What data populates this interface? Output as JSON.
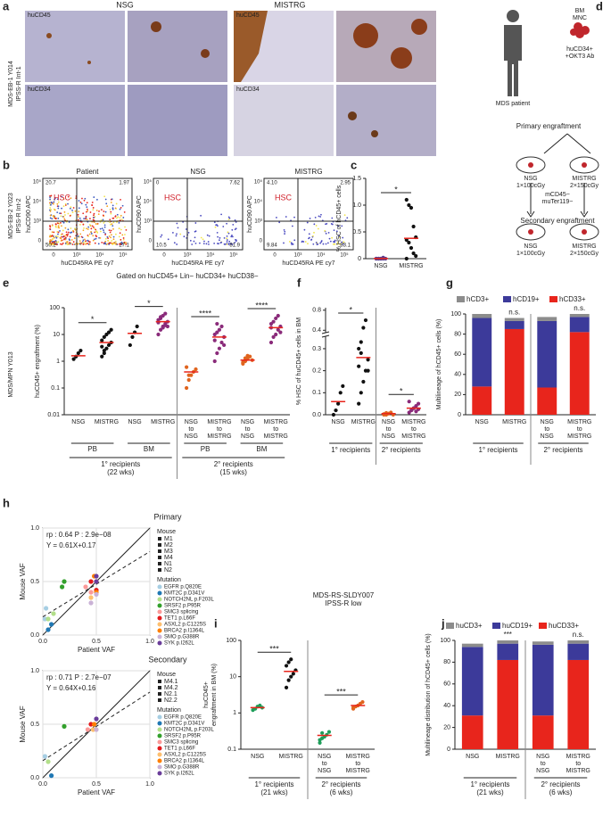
{
  "panel_a": {
    "label": "a",
    "columns": [
      "NSG",
      "MISTRG"
    ],
    "markers": [
      "huCD45",
      "huCD34"
    ],
    "side": [
      "MDS-EB-1 Y014",
      "IPSS-R Int-1"
    ]
  },
  "panel_b": {
    "label": "b",
    "plots": [
      {
        "title": "Patient",
        "quadrants": [
          "20.7",
          "1.97",
          "50.2",
          "27.1"
        ]
      },
      {
        "title": "NSG",
        "quadrants": [
          "0",
          "7.62",
          "10.5",
          "81.9"
        ]
      },
      {
        "title": "MISTRG",
        "quadrants": [
          "4.10",
          "2.95",
          "9.84",
          "83.1"
        ]
      }
    ],
    "gate_label": "HSC",
    "y_label": "huCD90 APC",
    "x_label": "huCD45RA PE cy7",
    "ticks": [
      "0",
      "10³",
      "10⁴",
      "10⁵"
    ],
    "footer": "Gated on huCD45+ Lin− huCD34+ huCD38−",
    "side": [
      "MDS-EB-2 Y023",
      "IPSS-R Int-2"
    ]
  },
  "panel_d": {
    "label": "d",
    "patient": "MDS patient",
    "sample": [
      "BM",
      "MNC"
    ],
    "antibody": [
      "huCD34+",
      "+OKT3 Ab"
    ],
    "primary": "Primary engraftment",
    "secondary": "Secondary engraftment",
    "mice": [
      {
        "name": "NSG",
        "dose": "1×100cGy"
      },
      {
        "name": "MISTRG",
        "dose": "2×150cGy"
      }
    ],
    "transfer": [
      "mCD45−",
      "muTer119−"
    ]
  },
  "side_e": "MDS/MPN Y013",
  "chart_data": [
    {
      "type": "dot",
      "panel": "c",
      "ylabel": "% HSC of hCD45+ cells",
      "categories": [
        [
          "NSG"
        ],
        [
          "MISTRG"
        ]
      ],
      "colors": [
        "#5a3a8c",
        "#111111"
      ],
      "points": [
        [
          0,
          0,
          0,
          0,
          0,
          0,
          0,
          0,
          0.02
        ],
        [
          1.1,
          1.0,
          0.95,
          0.6,
          0.4,
          0.35,
          0.3,
          0.2,
          0.1,
          0.05,
          0
        ]
      ],
      "means": [
        0.003,
        0.38
      ],
      "ylim": [
        0,
        1.5
      ],
      "yticks": [
        0,
        0.5,
        {
          "value": 1,
          "label": "1.0"
        },
        1.5
      ],
      "annotations": [
        "*"
      ]
    },
    {
      "type": "dot",
      "panel": "e",
      "ylabel": "huCD45+ engraftment (%)",
      "log": true,
      "categories": [
        [
          "NSG"
        ],
        [
          "MISTRG"
        ],
        [
          "NSG"
        ],
        [
          "MISTRG"
        ],
        [
          "NSG",
          "to",
          "NSG"
        ],
        [
          "MISTRG",
          "to",
          "MISTRG"
        ],
        [
          "NSG",
          "to",
          "NSG"
        ],
        [
          "MISTRG",
          "to",
          "MISTRG"
        ]
      ],
      "colors": [
        "#111111",
        "#111111",
        "#111111",
        "#8a2b7a",
        "#e0641e",
        "#8a2b7a",
        "#e0641e",
        "#8a2b7a"
      ],
      "points": [
        [
          1.2,
          1.5,
          2,
          2.5
        ],
        [
          1.5,
          2,
          3,
          4,
          5,
          6,
          8,
          10,
          12,
          15,
          3.5,
          2.5
        ],
        [
          4,
          8,
          12,
          20
        ],
        [
          10,
          15,
          20,
          25,
          30,
          35,
          40,
          50,
          60,
          20,
          28,
          45,
          18,
          22
        ],
        [
          0.1,
          0.2,
          0.3,
          0.4,
          0.5,
          0.6,
          0.3
        ],
        [
          1,
          2,
          3,
          5,
          8,
          10,
          12,
          15,
          20,
          4,
          6,
          25
        ],
        [
          0.8,
          1,
          1.2,
          1.5,
          1.1,
          0.9,
          1.3,
          1.6
        ],
        [
          5,
          8,
          10,
          15,
          20,
          25,
          30,
          40,
          50,
          12,
          18
        ]
      ],
      "means": [
        1.6,
        5,
        11,
        30,
        0.4,
        8,
        1.1,
        18
      ],
      "ylim": [
        0.01,
        100
      ],
      "yticks": [
        0.01,
        0.1,
        1,
        10,
        100
      ],
      "subgroups": [
        "PB",
        "BM",
        "PB",
        "BM"
      ],
      "group_labels": [
        [
          "1° recipients",
          "(22 wks)"
        ],
        [
          "2° recipients",
          "(15 wks)"
        ]
      ],
      "annotations": [
        "*",
        "*",
        "****",
        "****"
      ]
    },
    {
      "type": "dot",
      "panel": "f",
      "ylabel": "% HSC of huCD45+ cells in BM",
      "axis_break": [
        0.35,
        0.38
      ],
      "categories": [
        [
          "NSG"
        ],
        [
          "MISTRG"
        ],
        [
          "NSG",
          "to",
          "NSG"
        ],
        [
          "MISTRG",
          "to",
          "MISTRG"
        ]
      ],
      "colors": [
        "#111111",
        "#111111",
        "#e0641e",
        "#8a2b7a"
      ],
      "points": [
        [
          0,
          0.02,
          0.05,
          0.1,
          0.13
        ],
        [
          0.05,
          0.1,
          0.15,
          0.2,
          0.25,
          0.3,
          0.33,
          0.45,
          0.6,
          0.2,
          0.22,
          0.28
        ],
        [
          0,
          0,
          0.005,
          0.01,
          0,
          0.003,
          0.008
        ],
        [
          0.01,
          0.02,
          0.03,
          0.04,
          0.05,
          0.06,
          0.02,
          0.03,
          0.015,
          0.025
        ]
      ],
      "means": [
        0.06,
        0.26,
        0.005,
        0.03
      ],
      "ylim": [
        0,
        0.85
      ],
      "yticks": [
        {
          "value": 0,
          "label": "0.0"
        },
        0.1,
        0.2,
        0.3,
        0.4,
        0.8
      ],
      "group_labels": [
        [
          "1° recipients"
        ],
        [
          "2° recipients"
        ]
      ],
      "annotations": [
        "*",
        "*"
      ]
    },
    {
      "type": "stacked",
      "panel": "g",
      "ylabel": "Multilineage of hCD45+ cells (%)",
      "categories": [
        [
          "NSG"
        ],
        [
          "MISTRG"
        ],
        [
          "NSG",
          "to",
          "NSG"
        ],
        [
          "MISTRG",
          "to",
          "MISTRG"
        ]
      ],
      "series": [
        {
          "name": "hCD33+",
          "color": "#e8251c",
          "values": [
            28,
            85,
            27,
            82
          ]
        },
        {
          "name": "hCD19+",
          "color": "#3c3a9a",
          "values": [
            68,
            8,
            66,
            15
          ]
        },
        {
          "name": "hCD3+",
          "color": "#8c8c8c",
          "values": [
            4,
            3,
            4,
            3
          ]
        }
      ],
      "ylim": [
        0,
        100
      ],
      "yticks": [
        0,
        20,
        40,
        60,
        80,
        100
      ],
      "group_labels": [
        [
          "1° recipients"
        ],
        [
          "2° recipients"
        ]
      ],
      "annotations": [
        "n.s.",
        "n.s."
      ]
    },
    {
      "type": "scatter",
      "panel": "h",
      "title": "Primary",
      "xlabel": "Patient VAF",
      "ylabel": "Mouse VAF",
      "stats": [
        "rp : 0.64  P : 2.9e−08",
        "Y = 0.61X+0.17"
      ],
      "fit": {
        "slope": 0.61,
        "intercept": 0.17
      },
      "mouse_title": "Mouse",
      "mice": [
        "M1",
        "M2",
        "M3",
        "M4",
        "N1",
        "N2"
      ],
      "mutation_title": "Mutation",
      "xlim": [
        0,
        1
      ],
      "ylim": [
        0,
        1
      ],
      "xticks": [
        {
          "value": 0,
          "label": "0.0"
        },
        0.5,
        {
          "value": 1,
          "label": "1.0"
        }
      ],
      "yticks": [
        {
          "value": 0,
          "label": "0.0"
        },
        0.5,
        {
          "value": 1,
          "label": "1.0"
        }
      ],
      "grid": true,
      "series": [
        {
          "name": "EGFR p.Q820E",
          "color": "#a6cee3",
          "x": [
            0.02,
            0.03
          ],
          "values": [
            0.15,
            0.25
          ]
        },
        {
          "name": "KMT2C p.D341V",
          "color": "#1f78b4",
          "x": [
            0.05,
            0.08
          ],
          "values": [
            0.05,
            0.1
          ]
        },
        {
          "name": "NOTCH2NL p.F203L",
          "color": "#b2df8a",
          "x": [
            0.05,
            0.1
          ],
          "values": [
            0.15,
            0.2
          ]
        },
        {
          "name": "SRSF2 p.P95R",
          "color": "#33a02c",
          "x": [
            0.2,
            0.18
          ],
          "values": [
            0.5,
            0.45
          ]
        },
        {
          "name": "SMC3 splicing",
          "color": "#fb9a99",
          "x": [
            0.4,
            0.45
          ],
          "values": [
            0.45,
            0.4
          ]
        },
        {
          "name": "TET1 p.L66F",
          "color": "#e31a1c",
          "x": [
            0.45,
            0.5
          ],
          "values": [
            0.5,
            0.42
          ]
        },
        {
          "name": "ASXL2 p.C1225S",
          "color": "#fdbf6f",
          "x": [
            0.45,
            0.5
          ],
          "values": [
            0.35,
            0.5
          ]
        },
        {
          "name": "BRCA2 p.I1364L",
          "color": "#ff7f00",
          "x": [
            0.5,
            0.48
          ],
          "values": [
            0.4,
            0.55
          ]
        },
        {
          "name": "SMO p.G388R",
          "color": "#cab2d6",
          "x": [
            0.45,
            0.5
          ],
          "values": [
            0.3,
            0.38
          ]
        },
        {
          "name": "SYK p.I262L",
          "color": "#6a3d9a",
          "x": [
            0.5,
            0.5
          ],
          "values": [
            0.55,
            0.5
          ]
        }
      ]
    },
    {
      "type": "scatter",
      "title": "Secondary",
      "xlabel": "Patient VAF",
      "ylabel": "Mouse VAF",
      "stats": [
        "rp : 0.71  P : 2.7e−07",
        "Y = 0.64X+0.16"
      ],
      "fit": {
        "slope": 0.64,
        "intercept": 0.16
      },
      "mouse_title": "Mouse",
      "mice": [
        "M4.1",
        "M4.2",
        "N2.1",
        "N2.2"
      ],
      "mutation_title": "Mutation",
      "xlim": [
        0,
        1
      ],
      "ylim": [
        0,
        1
      ],
      "xticks": [
        {
          "value": 0,
          "label": "0.0"
        },
        0.5,
        {
          "value": 1,
          "label": "1.0"
        }
      ],
      "yticks": [
        {
          "value": 0,
          "label": "0.0"
        },
        0.5,
        {
          "value": 1,
          "label": "1.0"
        }
      ],
      "grid": true,
      "series": [
        {
          "name": "EGFR p.Q820E",
          "color": "#a6cee3",
          "x": [
            0.02
          ],
          "values": [
            0.2
          ]
        },
        {
          "name": "KMT2C p.D341V",
          "color": "#1f78b4",
          "x": [
            0.08
          ],
          "values": [
            0.02
          ]
        },
        {
          "name": "NOTCH2NL p.F203L",
          "color": "#b2df8a",
          "x": [
            0.05
          ],
          "values": [
            0.15
          ]
        },
        {
          "name": "SRSF2 p.P95R",
          "color": "#33a02c",
          "x": [
            0.2
          ],
          "values": [
            0.48
          ]
        },
        {
          "name": "SMC3 splicing",
          "color": "#fb9a99",
          "x": [
            0.42
          ],
          "values": [
            0.45
          ]
        },
        {
          "name": "TET1 p.L66F",
          "color": "#e31a1c",
          "x": [
            0.45
          ],
          "values": [
            0.5
          ]
        },
        {
          "name": "ASXL2 p.C1225S",
          "color": "#fdbf6f",
          "x": [
            0.47
          ],
          "values": [
            0.45
          ]
        },
        {
          "name": "BRCA2 p.I1364L",
          "color": "#ff7f00",
          "x": [
            0.48
          ],
          "values": [
            0.5
          ]
        },
        {
          "name": "SMO p.G388R",
          "color": "#cab2d6",
          "x": [
            0.5
          ],
          "values": [
            0.45
          ]
        },
        {
          "name": "SYK p.I262L",
          "color": "#6a3d9a",
          "x": [
            0.5
          ],
          "values": [
            0.55
          ]
        }
      ]
    },
    {
      "type": "dot",
      "panel": "i",
      "title": "MDS-RS-SLDY007",
      "subtitle": "IPSS-R low",
      "ylabel": [
        "huCD45+",
        "engraftment in BM (%)"
      ],
      "log": true,
      "categories": [
        [
          "NSG"
        ],
        [
          "MISTRG"
        ],
        [
          "NSG",
          "to",
          "NSG"
        ],
        [
          "MISTRG",
          "to",
          "MISTRG"
        ]
      ],
      "colors": [
        "#1f9e5a",
        "#111111",
        "#1f9e5a",
        "#e0641e"
      ],
      "points": [
        [
          1.2,
          1.3,
          1.5,
          1.6,
          1.4
        ],
        [
          5,
          8,
          10,
          12,
          15,
          20,
          25,
          30
        ],
        [
          0.15,
          0.2,
          0.22,
          0.25,
          0.3,
          0.18,
          0.28
        ],
        [
          1.3,
          1.5,
          1.6,
          1.8,
          2,
          1.4
        ]
      ],
      "means": [
        1.4,
        14,
        0.24,
        1.6
      ],
      "ylim": [
        0.1,
        100
      ],
      "yticks": [
        0.1,
        1,
        10,
        100
      ],
      "group_labels": [
        [
          "1° recipients",
          "(21 wks)"
        ],
        [
          "2° recipients",
          "(6 wks)"
        ]
      ],
      "annotations": [
        "***",
        "***"
      ]
    },
    {
      "type": "stacked",
      "panel": "j",
      "ylabel": "Multilineage distribution of hCD45+ cells (%)",
      "categories": [
        [
          "NSG"
        ],
        [
          "MISTRG"
        ],
        [
          "NSG",
          "to",
          "NSG"
        ],
        [
          "MISTRG",
          "to",
          "MISTRG"
        ]
      ],
      "series": [
        {
          "name": "huCD33+",
          "color": "#e8251c",
          "values": [
            31,
            82,
            31,
            82
          ]
        },
        {
          "name": "huCD19+",
          "color": "#3c3a9a",
          "values": [
            63,
            15,
            65,
            15
          ]
        },
        {
          "name": "huCD3+",
          "color": "#8c8c8c",
          "values": [
            3,
            3,
            3,
            3
          ]
        }
      ],
      "ylim": [
        0,
        100
      ],
      "yticks": [
        0,
        20,
        40,
        60,
        80,
        100
      ],
      "group_labels": [
        [
          "1° recipients",
          "(21 wks)"
        ],
        [
          "2° recipients",
          "(6 wks)"
        ]
      ],
      "annotations": [
        "***",
        "n.s."
      ]
    }
  ]
}
